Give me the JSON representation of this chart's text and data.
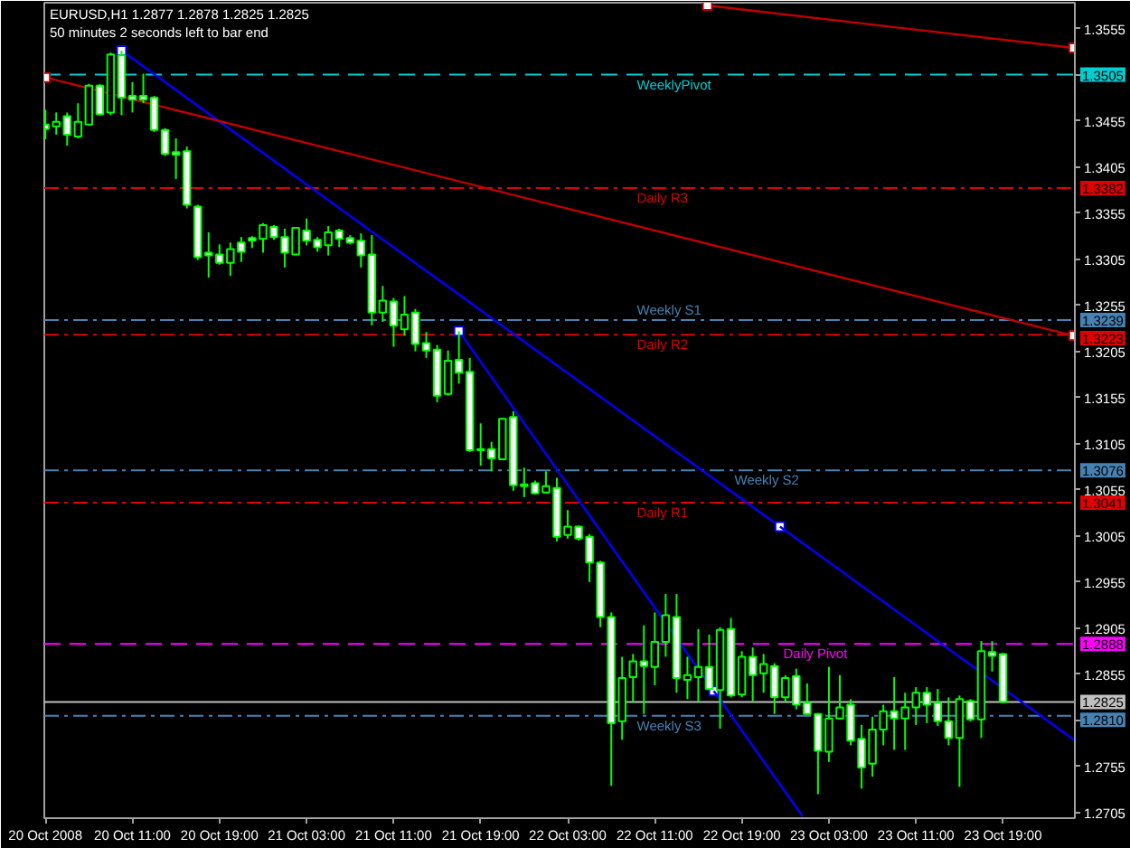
{
  "chart_data": {
    "type": "candlestick",
    "title": "EURUSD,H1 1.2877 1.2878 1.2825 1.2825",
    "subtitle": "50 minutes 2 seconds left to bar end",
    "x": [
      "2008-10-20T03:00",
      "2008-10-20T04:00",
      "2008-10-20T05:00",
      "2008-10-20T06:00",
      "2008-10-20T07:00",
      "2008-10-20T08:00",
      "2008-10-20T09:00",
      "2008-10-20T10:00",
      "2008-10-20T11:00",
      "2008-10-20T12:00",
      "2008-10-20T13:00",
      "2008-10-20T14:00",
      "2008-10-20T15:00",
      "2008-10-20T16:00",
      "2008-10-20T17:00",
      "2008-10-20T18:00",
      "2008-10-20T19:00",
      "2008-10-20T20:00",
      "2008-10-20T21:00",
      "2008-10-20T22:00",
      "2008-10-20T23:00",
      "2008-10-21T00:00",
      "2008-10-21T01:00",
      "2008-10-21T02:00",
      "2008-10-21T03:00",
      "2008-10-21T04:00",
      "2008-10-21T05:00",
      "2008-10-21T06:00",
      "2008-10-21T07:00",
      "2008-10-21T08:00",
      "2008-10-21T09:00",
      "2008-10-21T10:00",
      "2008-10-21T11:00",
      "2008-10-21T12:00",
      "2008-10-21T13:00",
      "2008-10-21T14:00",
      "2008-10-21T15:00",
      "2008-10-21T16:00",
      "2008-10-21T17:00",
      "2008-10-21T18:00",
      "2008-10-21T19:00",
      "2008-10-21T20:00",
      "2008-10-21T21:00",
      "2008-10-21T22:00",
      "2008-10-21T23:00",
      "2008-10-22T00:00",
      "2008-10-22T01:00",
      "2008-10-22T02:00",
      "2008-10-22T03:00",
      "2008-10-22T04:00",
      "2008-10-22T05:00",
      "2008-10-22T06:00",
      "2008-10-22T07:00",
      "2008-10-22T08:00",
      "2008-10-22T09:00",
      "2008-10-22T10:00",
      "2008-10-22T11:00",
      "2008-10-22T12:00",
      "2008-10-22T13:00",
      "2008-10-22T14:00",
      "2008-10-22T15:00",
      "2008-10-22T16:00",
      "2008-10-22T17:00",
      "2008-10-22T18:00",
      "2008-10-22T19:00",
      "2008-10-22T20:00",
      "2008-10-22T21:00",
      "2008-10-22T22:00",
      "2008-10-22T23:00",
      "2008-10-23T00:00",
      "2008-10-23T01:00",
      "2008-10-23T02:00",
      "2008-10-23T03:00",
      "2008-10-23T04:00",
      "2008-10-23T05:00",
      "2008-10-23T06:00",
      "2008-10-23T07:00",
      "2008-10-23T08:00",
      "2008-10-23T09:00",
      "2008-10-23T10:00",
      "2008-10-23T11:00",
      "2008-10-23T12:00",
      "2008-10-23T13:00",
      "2008-10-23T14:00",
      "2008-10-23T15:00",
      "2008-10-23T16:00",
      "2008-10-23T17:00",
      "2008-10-23T18:00",
      "2008-10-23T19:00"
    ],
    "ohlc": [
      [
        1.3451,
        1.3467,
        1.3435,
        1.3446
      ],
      [
        1.3449,
        1.3464,
        1.344,
        1.3454
      ],
      [
        1.346,
        1.3464,
        1.3428,
        1.344
      ],
      [
        1.3438,
        1.3474,
        1.3436,
        1.3454
      ],
      [
        1.3451,
        1.3495,
        1.3451,
        1.3493
      ],
      [
        1.3493,
        1.3495,
        1.3461,
        1.3462
      ],
      [
        1.3464,
        1.3529,
        1.3461,
        1.3527
      ],
      [
        1.3526,
        1.3531,
        1.3461,
        1.348
      ],
      [
        1.3482,
        1.3497,
        1.3464,
        1.3478
      ],
      [
        1.3482,
        1.3506,
        1.3474,
        1.3478
      ],
      [
        1.348,
        1.3482,
        1.3443,
        1.3445
      ],
      [
        1.3445,
        1.3447,
        1.3417,
        1.3419
      ],
      [
        1.3421,
        1.3436,
        1.3392,
        1.3418
      ],
      [
        1.3422,
        1.3427,
        1.336,
        1.3364
      ],
      [
        1.3362,
        1.3364,
        1.3304,
        1.3307
      ],
      [
        1.3312,
        1.3334,
        1.3285,
        1.3309
      ],
      [
        1.331,
        1.3321,
        1.3299,
        1.3301
      ],
      [
        1.3301,
        1.3323,
        1.3287,
        1.3316
      ],
      [
        1.3323,
        1.3329,
        1.3302,
        1.3313
      ],
      [
        1.3328,
        1.333,
        1.3317,
        1.3325
      ],
      [
        1.3327,
        1.3344,
        1.3312,
        1.3342
      ],
      [
        1.334,
        1.3342,
        1.3326,
        1.3329
      ],
      [
        1.3329,
        1.3338,
        1.3296,
        1.3312
      ],
      [
        1.331,
        1.3339,
        1.3309,
        1.3339
      ],
      [
        1.3336,
        1.3349,
        1.332,
        1.3325
      ],
      [
        1.3326,
        1.3329,
        1.3313,
        1.3318
      ],
      [
        1.332,
        1.3341,
        1.3309,
        1.3334
      ],
      [
        1.3336,
        1.3338,
        1.3318,
        1.3327
      ],
      [
        1.3328,
        1.3331,
        1.3321,
        1.3323
      ],
      [
        1.3325,
        1.3333,
        1.3296,
        1.3309
      ],
      [
        1.331,
        1.3331,
        1.3233,
        1.3247
      ],
      [
        1.3247,
        1.3276,
        1.3237,
        1.326
      ],
      [
        1.3259,
        1.3263,
        1.321,
        1.3233
      ],
      [
        1.3229,
        1.3265,
        1.3222,
        1.3245
      ],
      [
        1.3247,
        1.3251,
        1.3205,
        1.3213
      ],
      [
        1.3214,
        1.3226,
        1.3198,
        1.3206
      ],
      [
        1.3207,
        1.3212,
        1.315,
        1.3157
      ],
      [
        1.3159,
        1.3206,
        1.3157,
        1.3195
      ],
      [
        1.3196,
        1.3227,
        1.317,
        1.3182
      ],
      [
        1.3183,
        1.3198,
        1.3096,
        1.3098
      ],
      [
        1.3099,
        1.3127,
        1.3081,
        1.3098
      ],
      [
        1.3099,
        1.3107,
        1.3075,
        1.3089
      ],
      [
        1.3088,
        1.3133,
        1.3087,
        1.3132
      ],
      [
        1.3134,
        1.314,
        1.3054,
        1.306
      ],
      [
        1.3061,
        1.3079,
        1.3047,
        1.3059
      ],
      [
        1.3062,
        1.3065,
        1.305,
        1.3051
      ],
      [
        1.3052,
        1.3075,
        1.3051,
        1.3059
      ],
      [
        1.3057,
        1.3068,
        1.2999,
        1.3004
      ],
      [
        1.3006,
        1.3033,
        1.3002,
        1.3015
      ],
      [
        1.3015,
        1.3016,
        1.3,
        1.3002
      ],
      [
        1.3004,
        1.3007,
        1.2955,
        1.2976
      ],
      [
        1.2976,
        1.2978,
        1.2906,
        1.2917
      ],
      [
        1.2917,
        1.2922,
        1.2734,
        1.2802
      ],
      [
        1.2804,
        1.2874,
        1.2784,
        1.2851
      ],
      [
        1.2852,
        1.2877,
        1.2825,
        1.2869
      ],
      [
        1.2869,
        1.2908,
        1.2812,
        1.2864
      ],
      [
        1.2863,
        1.2922,
        1.2843,
        1.289
      ],
      [
        1.289,
        1.2942,
        1.2874,
        1.2919
      ],
      [
        1.2917,
        1.2942,
        1.2835,
        1.2851
      ],
      [
        1.2849,
        1.2874,
        1.2828,
        1.2854
      ],
      [
        1.2852,
        1.2904,
        1.2825,
        1.2863
      ],
      [
        1.2863,
        1.2898,
        1.2838,
        1.2839
      ],
      [
        1.2838,
        1.2906,
        1.2796,
        1.2903
      ],
      [
        1.2904,
        1.2916,
        1.283,
        1.2832
      ],
      [
        1.2833,
        1.288,
        1.283,
        1.2874
      ],
      [
        1.2874,
        1.2884,
        1.2826,
        1.2854
      ],
      [
        1.2856,
        1.2877,
        1.2835,
        1.2866
      ],
      [
        1.2864,
        1.2867,
        1.2812,
        1.283
      ],
      [
        1.283,
        1.2854,
        1.2825,
        1.2851
      ],
      [
        1.2853,
        1.2861,
        1.2817,
        1.2822
      ],
      [
        1.2824,
        1.2845,
        1.2812,
        1.2812
      ],
      [
        1.2812,
        1.2813,
        1.2725,
        1.2772
      ],
      [
        1.2771,
        1.2863,
        1.276,
        1.2807
      ],
      [
        1.2807,
        1.2854,
        1.2806,
        1.2819
      ],
      [
        1.2822,
        1.2828,
        1.2778,
        1.2783
      ],
      [
        1.2785,
        1.28,
        1.2731,
        1.2754
      ],
      [
        1.2758,
        1.2809,
        1.2744,
        1.2795
      ],
      [
        1.2795,
        1.2822,
        1.2778,
        1.2815
      ],
      [
        1.2815,
        1.2852,
        1.2773,
        1.2807
      ],
      [
        1.2807,
        1.2835,
        1.2773,
        1.2819
      ],
      [
        1.2819,
        1.2841,
        1.28,
        1.2835
      ],
      [
        1.2835,
        1.2841,
        1.2802,
        1.2822
      ],
      [
        1.2824,
        1.2839,
        1.2799,
        1.2804
      ],
      [
        1.2804,
        1.283,
        1.2778,
        1.2786
      ],
      [
        1.2786,
        1.2832,
        1.2733,
        1.2828
      ],
      [
        1.2826,
        1.2828,
        1.2804,
        1.2806
      ],
      [
        1.2806,
        1.2891,
        1.2786,
        1.288
      ],
      [
        1.2879,
        1.2891,
        1.2858,
        1.2875
      ],
      [
        1.2877,
        1.2878,
        1.2825,
        1.2825
      ]
    ],
    "color": "#00ff00",
    "colors": [
      "#ffffff",
      "#000000",
      "#ffffff",
      "#000000",
      "#000000",
      "#ffffff",
      "#000000",
      "#ffffff",
      "#ffffff",
      "#ffffff",
      "#ffffff",
      "#ffffff",
      "#ffffff",
      "#ffffff",
      "#ffffff",
      "#ffffff",
      "#ffffff",
      "#000000",
      "#ffffff",
      "#ffffff",
      "#000000",
      "#ffffff",
      "#ffffff",
      "#000000",
      "#ffffff",
      "#ffffff",
      "#000000",
      "#ffffff",
      "#ffffff",
      "#ffffff",
      "#ffffff",
      "#000000",
      "#ffffff",
      "#000000",
      "#ffffff",
      "#ffffff",
      "#ffffff",
      "#000000",
      "#ffffff",
      "#ffffff",
      "#ffffff",
      "#ffffff",
      "#000000",
      "#ffffff",
      "#ffffff",
      "#ffffff",
      "#000000",
      "#ffffff",
      "#000000",
      "#ffffff",
      "#ffffff",
      "#ffffff",
      "#ffffff",
      "#000000",
      "#000000",
      "#ffffff",
      "#000000",
      "#000000",
      "#ffffff",
      "#000000",
      "#000000",
      "#ffffff",
      "#000000",
      "#ffffff",
      "#000000",
      "#ffffff",
      "#000000",
      "#ffffff",
      "#000000",
      "#ffffff",
      "#ffffff",
      "#ffffff",
      "#000000",
      "#000000",
      "#ffffff",
      "#ffffff",
      "#000000",
      "#000000",
      "#ffffff",
      "#000000",
      "#000000",
      "#ffffff",
      "#ffffff",
      "#ffffff",
      "#000000",
      "#ffffff",
      "#000000",
      "#ffffff",
      "#ffffff"
    ],
    "series": [
      {
        "type": "line",
        "color": "#0000ff",
        "x": [
          "2008-10-20T10:00",
          "2008-10-22T22:30"
        ],
        "values": [
          1.3531,
          1.3015
        ],
        "marker": "square"
      },
      {
        "type": "line",
        "color": "#0000ff",
        "x": [
          "2008-10-22T22:30",
          "2008-10-24T01:30"
        ],
        "values": [
          1.3015,
          1.2784
        ]
      },
      {
        "type": "line",
        "color": "#0000ff",
        "x": [
          "2008-10-21T17:00",
          "2008-10-22T16:25"
        ],
        "values": [
          1.3227,
          1.2837
        ],
        "marker": "square"
      },
      {
        "type": "line",
        "color": "#0000ff",
        "x": [
          "2008-10-22T16:25",
          "2008-10-23T00:35"
        ],
        "values": [
          1.2837,
          1.2701
        ]
      },
      {
        "type": "line",
        "color": "#c00000",
        "x": [
          "2008-10-20T03:00",
          "2008-10-24T01:30"
        ],
        "values": [
          1.3502,
          1.3222
        ],
        "marker": "square"
      },
      {
        "type": "line",
        "color": "#c00000",
        "x": [
          "2008-10-22T15:50",
          "2008-10-24T01:30"
        ],
        "values": [
          1.358,
          1.3534
        ],
        "marker": "square"
      }
    ],
    "ref_lines": [
      {
        "axis": "y",
        "value": 1.3505,
        "label": "WeeklyPivot",
        "color": "#00ced1",
        "line_style": "dashed"
      },
      {
        "axis": "y",
        "value": 1.3382,
        "label": "Daily R3",
        "color": "#e00000",
        "line_style": "dashdot"
      },
      {
        "axis": "y",
        "value": 1.3239,
        "label": "Weekly S1",
        "color": "#4682b4",
        "line_style": "dashdot"
      },
      {
        "axis": "y",
        "value": 1.3223,
        "label": "Daily R2",
        "color": "#e00000",
        "line_style": "dashdot"
      },
      {
        "axis": "y",
        "value": 1.3076,
        "label": "Weekly S2",
        "color": "#4682b4",
        "line_style": "dashdot"
      },
      {
        "axis": "y",
        "value": 1.3041,
        "label": "Daily R1",
        "color": "#e00000",
        "line_style": "dashdot"
      },
      {
        "axis": "y",
        "value": 1.2888,
        "label": "Daily Pivot",
        "color": "#ff00ff",
        "line_style": "dashed"
      },
      {
        "axis": "y",
        "value": 1.2825,
        "color": "#c0c0c0",
        "line_style": "solid"
      },
      {
        "axis": "y",
        "value": 1.281,
        "label": "Weekly S3",
        "color": "#4682b4",
        "line_style": "dashdot"
      }
    ],
    "annotations": [
      {
        "text": "1.3505",
        "x": "2008-10-24T01:36",
        "y": 1.3505
      },
      {
        "text": "1.3382",
        "x": "2008-10-24T01:36",
        "y": 1.3382
      },
      {
        "text": "1.3239",
        "x": "2008-10-24T01:36",
        "y": 1.3239
      },
      {
        "text": "1.3223",
        "x": "2008-10-24T01:36",
        "y": 1.3223
      },
      {
        "text": "1.3076",
        "x": "2008-10-24T01:36",
        "y": 1.3076
      },
      {
        "text": "1.3041",
        "x": "2008-10-24T01:36",
        "y": 1.3041
      },
      {
        "text": "1.2888",
        "x": "2008-10-24T01:36",
        "y": 1.2888
      },
      {
        "text": "1.2825",
        "x": "2008-10-24T01:36",
        "y": 1.2825
      },
      {
        "text": "1.2810",
        "x": "2008-10-24T01:36",
        "y": 1.281
      }
    ],
    "xlim": [
      "2008-10-20T02:54",
      "2008-10-24T01:36"
    ],
    "ylim": [
      1.2699,
      1.3583
    ],
    "xticks": [
      {
        "value": "2008-10-20T03:00",
        "label": "20 Oct 2008"
      },
      {
        "value": "2008-10-20T11:00",
        "label": "20 Oct 11:00"
      },
      {
        "value": "2008-10-20T19:00",
        "label": "20 Oct 19:00"
      },
      {
        "value": "2008-10-21T03:00",
        "label": "21 Oct 03:00"
      },
      {
        "value": "2008-10-21T11:00",
        "label": "21 Oct 11:00"
      },
      {
        "value": "2008-10-21T19:00",
        "label": "21 Oct 19:00"
      },
      {
        "value": "2008-10-22T03:00",
        "label": "22 Oct 03:00"
      },
      {
        "value": "2008-10-22T11:00",
        "label": "22 Oct 11:00"
      },
      {
        "value": "2008-10-22T19:00",
        "label": "22 Oct 19:00"
      },
      {
        "value": "2008-10-23T03:00",
        "label": "23 Oct 03:00"
      },
      {
        "value": "2008-10-23T11:00",
        "label": "23 Oct 11:00"
      },
      {
        "value": "2008-10-23T19:00",
        "label": "23 Oct 19:00"
      }
    ],
    "yticks": [
      1.3555,
      {
        "value": 1.3505,
        "label": null
      },
      1.3455,
      1.3405,
      1.3355,
      1.3305,
      1.3255,
      1.3205,
      1.3155,
      1.3105,
      1.3055,
      1.3005,
      1.2955,
      1.2905,
      1.2855,
      {
        "value": 1.2805,
        "label": null
      },
      1.2755,
      1.2705
    ]
  }
}
